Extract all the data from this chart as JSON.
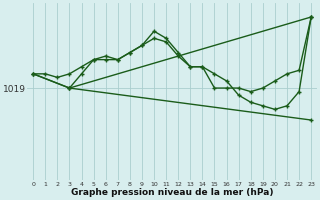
{
  "background_color": "#d8eeee",
  "plot_bg_color": "#d8eeee",
  "line_color": "#1a5c1a",
  "grid_color": "#aacece",
  "xlabel": "Graphe pression niveau de la mer (hPa)",
  "ylabel_value": 1019,
  "x_ticks": [
    0,
    1,
    2,
    3,
    4,
    5,
    6,
    7,
    8,
    9,
    10,
    11,
    12,
    13,
    14,
    15,
    16,
    17,
    18,
    19,
    20,
    21,
    22,
    23
  ],
  "xlim": [
    -0.5,
    23.5
  ],
  "ylim_min": 1006,
  "ylim_max": 1031,
  "series": [
    {
      "x": [
        0,
        1,
        2,
        3,
        4,
        5,
        6,
        7,
        8,
        9,
        10,
        11,
        12,
        13,
        14,
        15,
        16,
        17,
        18,
        19,
        20,
        21,
        22,
        23
      ],
      "y": [
        1021,
        1021,
        1020.5,
        1021,
        1022,
        1023,
        1023.5,
        1023,
        1024,
        1025,
        1026,
        1025.5,
        1023.5,
        1022,
        1022,
        1019,
        1019,
        1019,
        1018.5,
        1019,
        1020,
        1021,
        1021.5,
        1029
      ]
    },
    {
      "x": [
        0,
        3,
        4,
        5,
        6,
        7,
        8,
        9,
        10,
        11,
        12,
        13,
        14,
        15,
        16,
        17,
        18,
        19,
        20,
        21,
        22,
        23
      ],
      "y": [
        1021,
        1019,
        1021,
        1023,
        1023,
        1023,
        1024,
        1025,
        1027,
        1026,
        1024,
        1022,
        1022,
        1021,
        1020,
        1018,
        1017,
        1016.5,
        1016,
        1016.5,
        1018.5,
        1029
      ]
    },
    {
      "x": [
        0,
        3,
        23
      ],
      "y": [
        1021,
        1019,
        1029
      ]
    },
    {
      "x": [
        3,
        23
      ],
      "y": [
        1019,
        1014.5
      ]
    }
  ]
}
